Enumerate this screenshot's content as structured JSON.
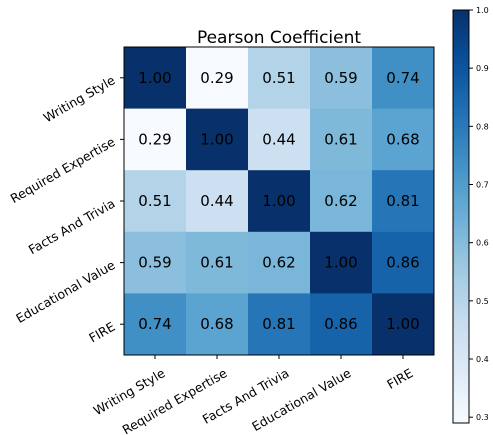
{
  "chart_data": {
    "type": "heatmap",
    "title": "Pearson Coefficient",
    "x_categories": [
      "Writing Style",
      "Required Expertise",
      "Facts And Trivia",
      "Educational Value",
      "FIRE"
    ],
    "y_categories": [
      "Writing Style",
      "Required Expertise",
      "Facts And Trivia",
      "Educational Value",
      "FIRE"
    ],
    "values": [
      [
        1.0,
        0.29,
        0.51,
        0.59,
        0.74
      ],
      [
        0.29,
        1.0,
        0.44,
        0.61,
        0.68
      ],
      [
        0.51,
        0.44,
        1.0,
        0.62,
        0.81
      ],
      [
        0.59,
        0.61,
        0.62,
        1.0,
        0.86
      ],
      [
        0.74,
        0.68,
        0.81,
        0.86,
        1.0
      ]
    ],
    "value_format": "0.00",
    "colormap": "Blues",
    "colorbar": {
      "range": [
        0.29,
        1.0
      ],
      "ticks": [
        0.3,
        0.4,
        0.5,
        0.6,
        0.7,
        0.8,
        0.9,
        1.0
      ],
      "tick_labels": [
        "0.3",
        "0.4",
        "0.5",
        "0.6",
        "0.7",
        "0.8",
        "0.9",
        "1.0"
      ],
      "placement": "right"
    },
    "xlabel": "",
    "ylabel": ""
  }
}
